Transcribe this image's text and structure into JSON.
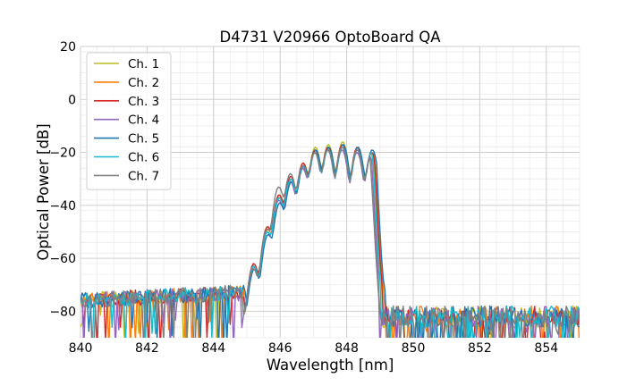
{
  "chart_data": {
    "type": "line",
    "title": "D4731 V20966 OptoBoard QA",
    "xlabel": "Wavelength [nm]",
    "ylabel": "Optical Power [dB]",
    "xlim": [
      840,
      855
    ],
    "ylim": [
      -90,
      20
    ],
    "xticks": [
      840,
      842,
      844,
      846,
      848,
      850,
      852,
      854
    ],
    "xtick_labels": [
      "840",
      "842",
      "844",
      "846",
      "848",
      "850",
      "852",
      "854"
    ],
    "yticks": [
      20,
      0,
      -20,
      -40,
      -60,
      -80
    ],
    "ytick_labels": [
      "20",
      "0",
      "−20",
      "−40",
      "−60",
      "−80"
    ],
    "grid": true,
    "minor_grid": true,
    "legend_position": "upper-left",
    "noise_floor": -75,
    "x_step": 0.05,
    "series": [
      {
        "name": "Ch. 1",
        "color": "#bcbd22",
        "shift": 0.02,
        "peaks": [
          [
            845.21,
            -62
          ],
          [
            845.63,
            -48
          ],
          [
            845.98,
            -36
          ],
          [
            846.33,
            -30
          ],
          [
            846.7,
            -24
          ],
          [
            847.06,
            -18
          ],
          [
            847.45,
            -17
          ],
          [
            847.88,
            -16
          ],
          [
            848.33,
            -18
          ],
          [
            848.76,
            -20
          ]
        ]
      },
      {
        "name": "Ch. 2",
        "color": "#ff7f0e",
        "shift": 0.06,
        "peaks": [
          [
            845.22,
            -63
          ],
          [
            845.63,
            -49
          ],
          [
            845.98,
            -37
          ],
          [
            846.33,
            -30
          ],
          [
            846.7,
            -25
          ],
          [
            847.06,
            -19
          ],
          [
            847.45,
            -18
          ],
          [
            847.88,
            -17
          ],
          [
            848.33,
            -19
          ],
          [
            848.76,
            -20
          ]
        ]
      },
      {
        "name": "Ch. 3",
        "color": "#d62728",
        "shift": 0.04,
        "peaks": [
          [
            845.21,
            -62
          ],
          [
            845.62,
            -48
          ],
          [
            845.97,
            -36
          ],
          [
            846.32,
            -29
          ],
          [
            846.69,
            -24
          ],
          [
            847.05,
            -19
          ],
          [
            847.44,
            -18
          ],
          [
            847.87,
            -17
          ],
          [
            848.32,
            -18
          ],
          [
            848.75,
            -20
          ]
        ]
      },
      {
        "name": "Ch. 4",
        "color": "#9467bd",
        "shift": -0.06,
        "peaks": [
          [
            845.2,
            -63
          ],
          [
            845.61,
            -50
          ],
          [
            845.96,
            -38
          ],
          [
            846.31,
            -31
          ],
          [
            846.68,
            -26
          ],
          [
            847.04,
            -20
          ],
          [
            847.43,
            -19
          ],
          [
            847.86,
            -19
          ],
          [
            848.31,
            -20
          ],
          [
            848.74,
            -21
          ]
        ]
      },
      {
        "name": "Ch. 5",
        "color": "#1f77b4",
        "shift": 0.1,
        "peaks": [
          [
            845.23,
            -64
          ],
          [
            845.64,
            -51
          ],
          [
            845.99,
            -39
          ],
          [
            846.34,
            -31
          ],
          [
            846.71,
            -25
          ],
          [
            847.07,
            -19
          ],
          [
            847.46,
            -18
          ],
          [
            847.89,
            -17
          ],
          [
            848.34,
            -18
          ],
          [
            848.77,
            -19
          ]
        ]
      },
      {
        "name": "Ch. 6",
        "color": "#17becf",
        "shift": -0.02,
        "peaks": [
          [
            845.21,
            -63
          ],
          [
            845.62,
            -50
          ],
          [
            845.97,
            -37
          ],
          [
            846.32,
            -30
          ],
          [
            846.69,
            -25
          ],
          [
            847.05,
            -20
          ],
          [
            847.44,
            -19
          ],
          [
            847.87,
            -18
          ],
          [
            848.32,
            -19
          ],
          [
            848.75,
            -20
          ]
        ]
      },
      {
        "name": "Ch. 7",
        "color": "#7f7f7f",
        "shift": -0.1,
        "peaks": [
          [
            845.2,
            -64
          ],
          [
            845.61,
            -49
          ],
          [
            845.96,
            -33
          ],
          [
            846.31,
            -28
          ],
          [
            846.68,
            -25
          ],
          [
            847.04,
            -20
          ],
          [
            847.43,
            -19
          ],
          [
            847.86,
            -18
          ],
          [
            848.31,
            -19
          ],
          [
            848.74,
            -21
          ]
        ]
      }
    ]
  }
}
